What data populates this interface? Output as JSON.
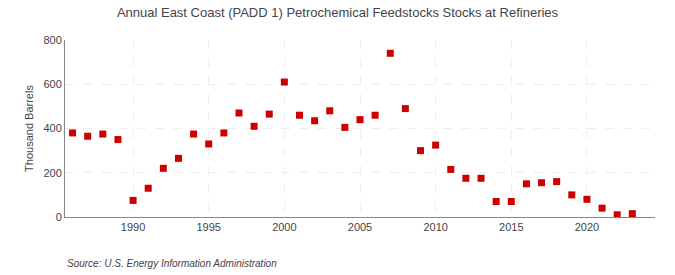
{
  "chart_data": {
    "type": "scatter",
    "title": "Annual East Coast (PADD 1) Petrochemical Feedstocks Stocks at Refineries",
    "ylabel": "Thousand Barrels",
    "annotations": [
      {
        "text": "Source: U.S. Energy Information Administration"
      }
    ],
    "x": [
      1986,
      1987,
      1988,
      1989,
      1990,
      1991,
      1992,
      1993,
      1994,
      1995,
      1996,
      1997,
      1998,
      1999,
      2000,
      2001,
      2002,
      2003,
      2004,
      2005,
      2006,
      2007,
      2008,
      2009,
      2010,
      2011,
      2012,
      2013,
      2014,
      2015,
      2016,
      2017,
      2018,
      2019,
      2020,
      2021,
      2022,
      2023
    ],
    "values": [
      380,
      365,
      375,
      350,
      75,
      130,
      220,
      265,
      375,
      330,
      380,
      470,
      410,
      465,
      610,
      460,
      435,
      480,
      405,
      440,
      460,
      740,
      490,
      300,
      325,
      215,
      175,
      175,
      70,
      70,
      150,
      155,
      160,
      100,
      80,
      40,
      10,
      15
    ],
    "color": "#cc0000",
    "marker": "square",
    "xlim": [
      1985.5,
      2024.5
    ],
    "xticks": [
      1990,
      1995,
      2000,
      2005,
      2010,
      2015,
      2020
    ],
    "ylim": [
      0,
      800
    ],
    "yticks": [
      0,
      200,
      400,
      600,
      800
    ],
    "grid": true
  }
}
